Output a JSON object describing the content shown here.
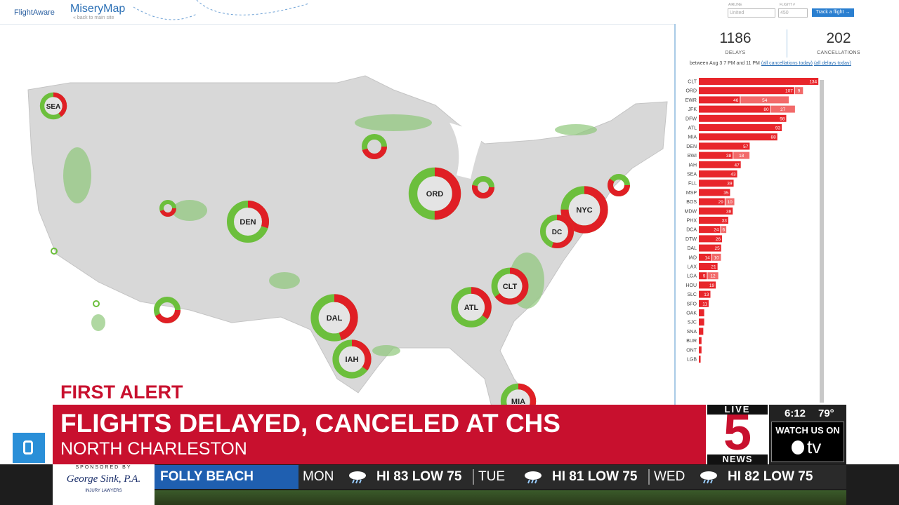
{
  "header": {
    "brand": "FlightAware",
    "app": "MiseryMap",
    "back": "« back to main site",
    "airline_label": "AIRLINE",
    "airline_placeholder": "United",
    "flight_label": "FLIGHT #",
    "flight_placeholder": "450",
    "button": "Track a flight →"
  },
  "stats": {
    "delays": "1186",
    "delays_label": "DELAYS",
    "cancellations": "202",
    "cancellations_label": "CANCELLATIONS",
    "range": "between Aug 3 7 PM and 11 PM",
    "link_cancellations": "(all cancellations today)",
    "link_delays": "(all delays today)"
  },
  "airports": [
    {
      "code": "CLT",
      "delays": 134
    },
    {
      "code": "ORD",
      "delays": 107,
      "cancellations": 9
    },
    {
      "code": "EWR",
      "delays": 46,
      "cancellations": 54
    },
    {
      "code": "JFK",
      "delays": 80,
      "cancellations": 27
    },
    {
      "code": "DFW",
      "delays": 98
    },
    {
      "code": "ATL",
      "delays": 93
    },
    {
      "code": "MIA",
      "delays": 88
    },
    {
      "code": "DEN",
      "delays": 57
    },
    {
      "code": "BWI",
      "delays": 38,
      "cancellations": 18
    },
    {
      "code": "IAH",
      "delays": 47
    },
    {
      "code": "SEA",
      "delays": 43
    },
    {
      "code": "FLL",
      "delays": 39
    },
    {
      "code": "MSP",
      "delays": 35
    },
    {
      "code": "BOS",
      "delays": 29,
      "cancellations": 10
    },
    {
      "code": "MDW",
      "delays": 38
    },
    {
      "code": "PHX",
      "delays": 33
    },
    {
      "code": "DCA",
      "delays": 24,
      "cancellations": 6
    },
    {
      "code": "DTW",
      "delays": 26
    },
    {
      "code": "DAL",
      "delays": 25
    },
    {
      "code": "IAD",
      "delays": 14,
      "cancellations": 10
    },
    {
      "code": "LAX",
      "delays": 21
    },
    {
      "code": "LGA",
      "delays": 9,
      "cancellations": 12
    },
    {
      "code": "HOU",
      "delays": 19
    },
    {
      "code": "SLC",
      "delays": 13
    },
    {
      "code": "SFO",
      "delays": 11
    },
    {
      "code": "OAK",
      "delays": 6
    },
    {
      "code": "SJC",
      "delays": 6
    },
    {
      "code": "SNA",
      "delays": 5
    },
    {
      "code": "BUR",
      "delays": 3
    },
    {
      "code": "ONT",
      "delays": 3
    },
    {
      "code": "LGB",
      "delays": 2
    }
  ],
  "hubs": [
    {
      "label": "SEA",
      "red_pct": 40
    },
    {
      "label": "ORD",
      "red_pct": 50
    },
    {
      "label": "NYC",
      "red_pct": 75
    },
    {
      "label": "DEN",
      "red_pct": 30
    },
    {
      "label": "DC",
      "red_pct": 55
    },
    {
      "label": "CLT",
      "red_pct": 65
    },
    {
      "label": "ATL",
      "red_pct": 35
    },
    {
      "label": "DAL",
      "red_pct": 45
    },
    {
      "label": "IAH",
      "red_pct": 35
    },
    {
      "label": "MIA",
      "red_pct": 40
    }
  ],
  "broadcast": {
    "alert": "FIRST ALERT",
    "headline": "FLIGHTS DELAYED, CANCELED AT CHS",
    "location": "NORTH CHARLESTON",
    "logo_live": "LIVE",
    "logo_number": "5",
    "logo_news": "NEWS",
    "time": "6:12",
    "temp": "79°",
    "watch": "WATCH US ON",
    "tv": "tv"
  },
  "ticker": {
    "sponsor_label": "SPONSORED BY",
    "sponsor_name": "George Sink, P.A.",
    "sponsor_sub": "INJURY LAWYERS",
    "place": "FOLLY BEACH",
    "forecast": [
      {
        "day": "MON",
        "text": "HI 83 LOW 75"
      },
      {
        "day": "TUE",
        "text": "HI 81 LOW 75"
      },
      {
        "day": "WED",
        "text": "HI 82 LOW 75"
      }
    ]
  }
}
